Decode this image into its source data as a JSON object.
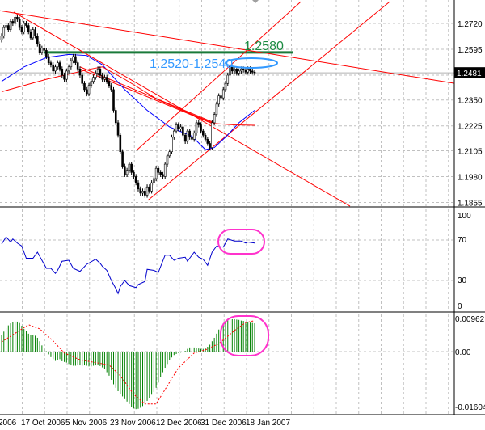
{
  "chart_data": [
    {
      "type": "candlestick",
      "panel": "price",
      "x_tick_labels": [
        "2006",
        "17 Oct 2006",
        "5 Nov 2006",
        "23 Nov 2006",
        "12 Dec 2006",
        "31 Dec 2006",
        "18 Jan 2007"
      ],
      "y_tick_labels": [
        "1.2720",
        "1.2595",
        "1.2350",
        "1.2225",
        "1.2105",
        "1.1980",
        "1.1855"
      ],
      "ylim": [
        1.1845,
        1.2835
      ],
      "grid": true,
      "current_price": "1.2481",
      "closes": [
        1.266,
        1.27,
        1.271,
        1.269,
        1.273,
        1.272,
        1.275,
        1.274,
        1.27,
        1.268,
        1.272,
        1.271,
        1.268,
        1.265,
        1.269,
        1.266,
        1.262,
        1.258,
        1.26,
        1.259,
        1.256,
        1.253,
        1.252,
        1.249,
        1.251,
        1.253,
        1.25,
        1.247,
        1.245,
        1.249,
        1.251,
        1.254,
        1.256,
        1.253,
        1.25,
        1.247,
        1.243,
        1.24,
        1.238,
        1.242,
        1.244,
        1.246,
        1.248,
        1.25,
        1.247,
        1.245,
        1.246,
        1.244,
        1.242,
        1.24,
        1.23,
        1.224,
        1.218,
        1.21,
        1.203,
        1.199,
        1.201,
        1.204,
        1.2,
        1.198,
        1.195,
        1.192,
        1.19,
        1.191,
        1.189,
        1.193,
        1.191,
        1.195,
        1.197,
        1.202,
        1.2,
        1.199,
        1.198,
        1.204,
        1.208,
        1.21,
        1.217,
        1.22,
        1.223,
        1.221,
        1.222,
        1.218,
        1.215,
        1.22,
        1.217,
        1.216,
        1.219,
        1.224,
        1.223,
        1.22,
        1.218,
        1.216,
        1.214,
        1.212,
        1.224,
        1.228,
        1.233,
        1.237,
        1.236,
        1.24,
        1.243,
        1.247,
        1.251,
        1.249,
        1.25,
        1.248,
        1.249,
        1.25,
        1.2495,
        1.2485,
        1.25,
        1.249,
        1.2485,
        1.2481
      ],
      "moving_averages": [
        {
          "color": "#0000ff",
          "points": [
            [
              0,
              1.244
            ],
            [
              10,
              1.251
            ],
            [
              20,
              1.2555
            ],
            [
              30,
              1.257
            ],
            [
              38,
              1.2565
            ],
            [
              45,
              1.252
            ],
            [
              55,
              1.24
            ],
            [
              65,
              1.23
            ],
            [
              75,
              1.222
            ],
            [
              85,
              1.2175
            ],
            [
              91,
              1.211
            ],
            [
              95,
              1.212
            ],
            [
              100,
              1.217
            ],
            [
              106,
              1.224
            ],
            [
              113,
              1.23
            ]
          ]
        },
        {
          "color": "#ff0000",
          "points": [
            [
              0,
              1.239
            ],
            [
              20,
              1.245
            ],
            [
              40,
              1.25
            ],
            [
              45,
              1.251
            ],
            [
              55,
              1.245
            ],
            [
              70,
              1.235
            ],
            [
              85,
              1.228
            ],
            [
              95,
              1.2236
            ],
            [
              104,
              1.223
            ],
            [
              113,
              1.2228
            ]
          ]
        }
      ],
      "trend_lines": [
        {
          "color": "#ff0000",
          "from": [
            -1,
            1.2782
          ],
          "to": [
            202,
            1.2431
          ]
        },
        {
          "color": "#ff0000",
          "from": [
            5.4,
            1.2775
          ],
          "to": [
            155.6,
            1.1837
          ]
        },
        {
          "color": "#ff0000",
          "from": [
            35,
            1.251
          ],
          "to": [
            95,
            1.224
          ]
        },
        {
          "color": "#ff0000",
          "from": [
            35,
            1.25
          ],
          "to": [
            95,
            1.2232
          ]
        },
        {
          "color": "#ff0000",
          "from": [
            60.7,
            1.2111
          ],
          "to": [
            133.6,
            1.2825
          ]
        },
        {
          "color": "#ff0000",
          "from": [
            65.3,
            1.1865
          ],
          "to": [
            173.3,
            1.2825
          ]
        }
      ],
      "horizontal_level": {
        "value": 1.258,
        "from_bar": 19,
        "to_bar": 130,
        "color": "#1a7a3a"
      },
      "annotations": [
        {
          "text": "1.2580",
          "color": "#1a8a40"
        },
        {
          "text": "1.2520-1.2540",
          "color": "#3399ff"
        }
      ]
    },
    {
      "type": "line",
      "panel": "RSI",
      "y_tick_labels": [
        "100",
        "70",
        "30",
        "0"
      ],
      "ylim": [
        0,
        100
      ],
      "levels": [
        70,
        30
      ],
      "color": "#0000cc",
      "points": [
        [
          0,
          66
        ],
        [
          2,
          73
        ],
        [
          4,
          68
        ],
        [
          5,
          71
        ],
        [
          7,
          67
        ],
        [
          9,
          64
        ],
        [
          11,
          52
        ],
        [
          14,
          52
        ],
        [
          16,
          58
        ],
        [
          18,
          50
        ],
        [
          20,
          42
        ],
        [
          22,
          42
        ],
        [
          24,
          37
        ],
        [
          25,
          40
        ],
        [
          27,
          49
        ],
        [
          30,
          50
        ],
        [
          32,
          42
        ],
        [
          35,
          39
        ],
        [
          38,
          46
        ],
        [
          42,
          51
        ],
        [
          44,
          47
        ],
        [
          45,
          44
        ],
        [
          47,
          40
        ],
        [
          49,
          30
        ],
        [
          51,
          22
        ],
        [
          52,
          17
        ],
        [
          53,
          24
        ],
        [
          55,
          30
        ],
        [
          57,
          25
        ],
        [
          60,
          23
        ],
        [
          61,
          26
        ],
        [
          64,
          29
        ],
        [
          65,
          41
        ],
        [
          68,
          40
        ],
        [
          70,
          38
        ],
        [
          73,
          55
        ],
        [
          75,
          55
        ],
        [
          77,
          50
        ],
        [
          79,
          52
        ],
        [
          82,
          53
        ],
        [
          83,
          49
        ],
        [
          86,
          58
        ],
        [
          88,
          53
        ],
        [
          90,
          51
        ],
        [
          92,
          45
        ],
        [
          94,
          58
        ],
        [
          96,
          64
        ],
        [
          99,
          63
        ],
        [
          101,
          71
        ],
        [
          104,
          69
        ],
        [
          107,
          69
        ],
        [
          109,
          67
        ],
        [
          110,
          68
        ],
        [
          113,
          67
        ]
      ]
    },
    {
      "type": "bar",
      "panel": "MACD",
      "y_tick_labels": [
        "0.00962",
        "0.00",
        "-0.01604"
      ],
      "ylim": [
        -0.0172,
        0.011
      ],
      "histogram_color": "#008000",
      "histogram": [
        0.0047,
        0.0058,
        0.0068,
        0.0076,
        0.0082,
        0.0086,
        0.0087,
        0.0087,
        0.0083,
        0.0075,
        0.0066,
        0.006,
        0.0052,
        0.0047,
        0.0047,
        0.0046,
        0.004,
        0.003,
        0.0018,
        0.0008,
        0.0001,
        -0.0008,
        -0.0016,
        -0.0022,
        -0.0027,
        -0.0024,
        -0.0022,
        -0.0028,
        -0.003,
        -0.0032,
        -0.0036,
        -0.004,
        -0.0041,
        -0.0041,
        -0.004,
        -0.004,
        -0.0041,
        -0.004,
        -0.0041,
        -0.0043,
        -0.0043,
        -0.0041,
        -0.004,
        -0.004,
        -0.0042,
        -0.0046,
        -0.005,
        -0.006,
        -0.007,
        -0.0082,
        -0.0095,
        -0.0105,
        -0.0115,
        -0.0122,
        -0.013,
        -0.0138,
        -0.0145,
        -0.0152,
        -0.016,
        -0.0165,
        -0.0167,
        -0.0166,
        -0.0163,
        -0.0158,
        -0.015,
        -0.0143,
        -0.0134,
        -0.0125,
        -0.0117,
        -0.0105,
        -0.009,
        -0.0075,
        -0.006,
        -0.0047,
        -0.0036,
        -0.0025,
        -0.0017,
        -0.001,
        -0.0007,
        -0.0004,
        -0.0003,
        -0.0002,
        0.0002,
        0.0008,
        0.0012,
        0.0012,
        0.0012,
        0.001,
        0.0009,
        0.0008,
        0.0008,
        0.001,
        0.0014,
        0.002,
        0.003,
        0.004,
        0.0052,
        0.0064,
        0.0074,
        0.0082,
        0.0087,
        0.0091,
        0.0094,
        0.0094,
        0.0094,
        0.0093,
        0.0092,
        0.009,
        0.0089,
        0.0087,
        0.0086,
        0.0084,
        0.0083,
        0.0082
      ],
      "signal_color": "#ff0000",
      "signal": [
        [
          0,
          0.0028
        ],
        [
          6.5,
          0.0055
        ],
        [
          12,
          0.0078
        ],
        [
          17,
          0.0066
        ],
        [
          23,
          0.0031
        ],
        [
          28,
          -0.0004
        ],
        [
          35,
          -0.0024
        ],
        [
          43,
          -0.0033
        ],
        [
          48,
          -0.0039
        ],
        [
          53,
          -0.007
        ],
        [
          59,
          -0.0124
        ],
        [
          64,
          -0.0152
        ],
        [
          69,
          -0.0152
        ],
        [
          73,
          -0.011
        ],
        [
          79,
          -0.0047
        ],
        [
          86,
          -0.0004
        ],
        [
          91,
          0.0005
        ],
        [
          97,
          0.0023
        ],
        [
          104,
          0.0061
        ],
        [
          109,
          0.0084
        ],
        [
          113,
          0.009
        ]
      ]
    }
  ],
  "colors": {
    "highlight_ellipse": "#ff33cc",
    "range_ellipse": "#3399ff",
    "grid": "#c0c0c0"
  }
}
